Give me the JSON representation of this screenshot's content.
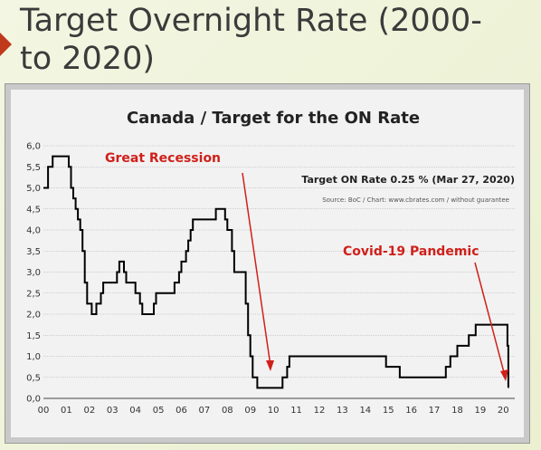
{
  "slide": {
    "title": "Target Overnight Rate (2000-to 2020)",
    "title_line1": "Target Overnight Rate (2000-",
    "title_line2": "to 2020)",
    "accent_color": "#c0391b"
  },
  "chart_data": {
    "type": "line",
    "title": "Canada / Target for the ON Rate",
    "xlabel": "",
    "ylabel": "",
    "xlim": [
      2000,
      2020.5
    ],
    "ylim": [
      0,
      6
    ],
    "grid": true,
    "x_ticks": [
      "00",
      "01",
      "02",
      "03",
      "04",
      "05",
      "06",
      "07",
      "08",
      "09",
      "10",
      "11",
      "12",
      "13",
      "14",
      "15",
      "16",
      "17",
      "18",
      "19",
      "20"
    ],
    "y_ticks": [
      "0,0",
      "0,5",
      "1,0",
      "1,5",
      "2,0",
      "2,5",
      "3,0",
      "3,5",
      "4,0",
      "4,5",
      "5,0",
      "5,5",
      "6,0"
    ],
    "line_color": "#000000",
    "series": [
      {
        "name": "",
        "points": [
          [
            2000.0,
            5.0
          ],
          [
            2000.2,
            5.5
          ],
          [
            2000.4,
            5.75
          ],
          [
            2001.0,
            5.75
          ],
          [
            2001.1,
            5.5
          ],
          [
            2001.2,
            5.0
          ],
          [
            2001.3,
            4.75
          ],
          [
            2001.4,
            4.5
          ],
          [
            2001.5,
            4.25
          ],
          [
            2001.6,
            4.0
          ],
          [
            2001.7,
            3.5
          ],
          [
            2001.8,
            2.75
          ],
          [
            2001.9,
            2.25
          ],
          [
            2002.1,
            2.0
          ],
          [
            2002.3,
            2.25
          ],
          [
            2002.5,
            2.5
          ],
          [
            2002.6,
            2.75
          ],
          [
            2003.2,
            3.0
          ],
          [
            2003.3,
            3.25
          ],
          [
            2003.5,
            3.0
          ],
          [
            2003.6,
            2.75
          ],
          [
            2004.0,
            2.5
          ],
          [
            2004.2,
            2.25
          ],
          [
            2004.3,
            2.0
          ],
          [
            2004.8,
            2.25
          ],
          [
            2004.9,
            2.5
          ],
          [
            2005.7,
            2.75
          ],
          [
            2005.9,
            3.0
          ],
          [
            2006.0,
            3.25
          ],
          [
            2006.2,
            3.5
          ],
          [
            2006.3,
            3.75
          ],
          [
            2006.4,
            4.0
          ],
          [
            2006.5,
            4.25
          ],
          [
            2007.5,
            4.5
          ],
          [
            2007.9,
            4.25
          ],
          [
            2008.0,
            4.0
          ],
          [
            2008.2,
            3.5
          ],
          [
            2008.3,
            3.0
          ],
          [
            2008.8,
            2.25
          ],
          [
            2008.9,
            1.5
          ],
          [
            2009.0,
            1.0
          ],
          [
            2009.1,
            0.5
          ],
          [
            2009.3,
            0.25
          ],
          [
            2010.4,
            0.5
          ],
          [
            2010.6,
            0.75
          ],
          [
            2010.7,
            1.0
          ],
          [
            2014.9,
            0.75
          ],
          [
            2015.5,
            0.5
          ],
          [
            2017.5,
            0.75
          ],
          [
            2017.7,
            1.0
          ],
          [
            2018.0,
            1.25
          ],
          [
            2018.5,
            1.5
          ],
          [
            2018.8,
            1.75
          ],
          [
            2020.15,
            1.75
          ],
          [
            2020.18,
            1.25
          ],
          [
            2020.22,
            0.25
          ]
        ]
      }
    ],
    "annotations": {
      "great_recession": "Great Recession",
      "covid": "Covid-19 Pandemic",
      "current_rate": "Target ON Rate 0.25 % (Mar 27, 2020)",
      "source": "Source: BoC / Chart: www.cbrates.com / without guarantee"
    },
    "annotation_color": "#d0201b"
  }
}
